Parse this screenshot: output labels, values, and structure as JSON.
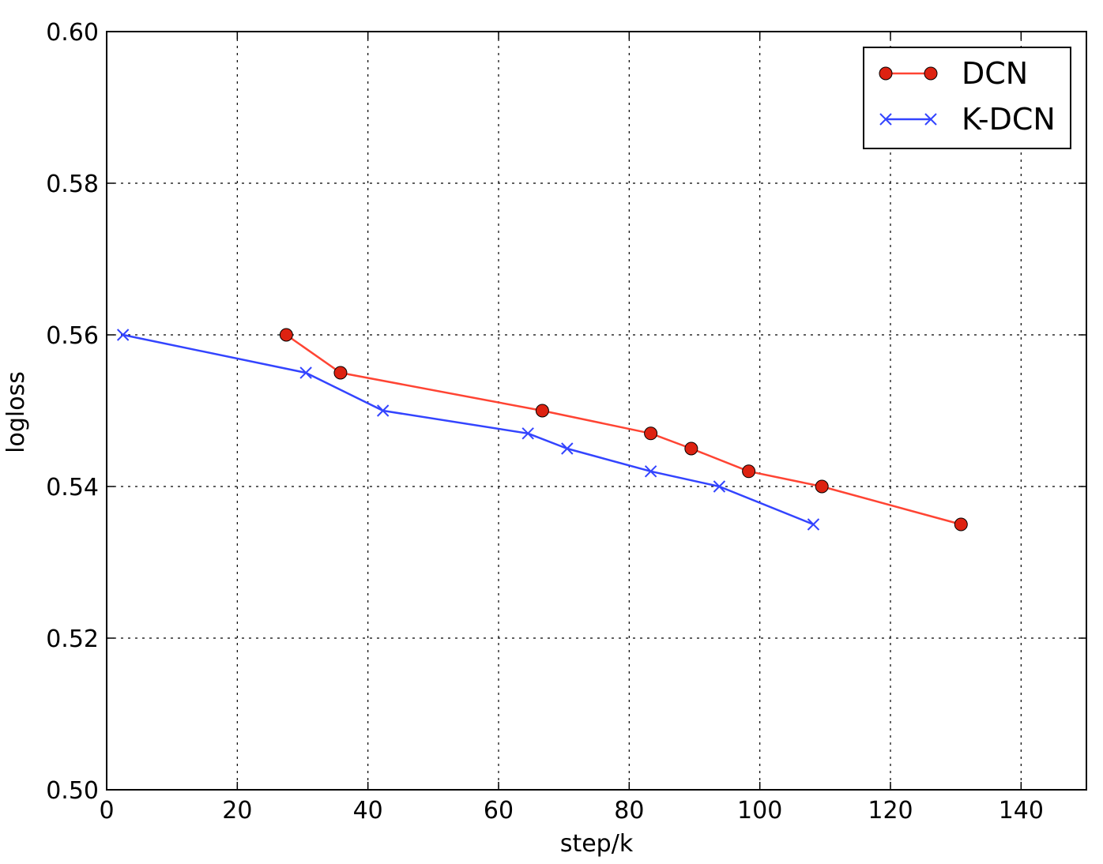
{
  "chart_data": {
    "type": "line",
    "title": "",
    "xlabel": "step/k",
    "ylabel": "logloss",
    "xlim": [
      0,
      150
    ],
    "ylim": [
      0.5,
      0.6
    ],
    "xticks": [
      0,
      20,
      40,
      60,
      80,
      100,
      120,
      140
    ],
    "xtick_labels": [
      "0",
      "20",
      "40",
      "60",
      "80",
      "100",
      "120",
      "140"
    ],
    "yticks": [
      0.5,
      0.52,
      0.54,
      0.56,
      0.58,
      0.6
    ],
    "ytick_labels": [
      "0.50",
      "0.52",
      "0.54",
      "0.56",
      "0.58",
      "0.60"
    ],
    "grid": true,
    "legend_position": "top-right",
    "series": [
      {
        "name": "DCN",
        "color": "#ff4433",
        "marker": "circle",
        "marker_color": "#dd2211",
        "x": [
          27.5,
          35.8,
          66.7,
          83.3,
          89.5,
          98.3,
          109.5,
          130.8
        ],
        "y": [
          0.56,
          0.555,
          0.55,
          0.547,
          0.545,
          0.542,
          0.54,
          0.535
        ]
      },
      {
        "name": "K-DCN",
        "color": "#3344ff",
        "marker": "x",
        "marker_color": "#3344ff",
        "x": [
          2.5,
          30.5,
          42.3,
          64.5,
          70.5,
          83.3,
          93.8,
          108.2
        ],
        "y": [
          0.56,
          0.555,
          0.55,
          0.547,
          0.545,
          0.542,
          0.54,
          0.535
        ]
      }
    ]
  }
}
